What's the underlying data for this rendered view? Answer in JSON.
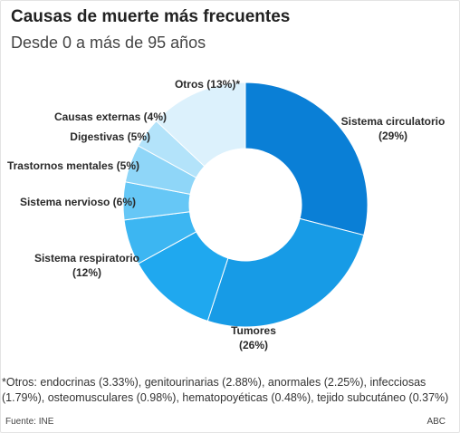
{
  "header": {
    "title": "Causas de muerte más frecuentes",
    "subtitle": "Desde 0 a más de 95 años"
  },
  "chart_data": {
    "type": "pie",
    "donut": true,
    "title": "Causas de muerte más frecuentes",
    "subtitle": "Desde 0 a más de 95 años",
    "categories": [
      "Sistema circulatorio",
      "Tumores",
      "Sistema respiratorio",
      "Sistema nervioso",
      "Trastornos mentales",
      "Digestivas",
      "Causas externas",
      "Otros"
    ],
    "values": [
      29,
      26,
      12,
      6,
      5,
      5,
      4,
      13
    ],
    "labels": [
      [
        "Sistema circulatorio",
        "(29%)"
      ],
      [
        "Tumores",
        "(26%)"
      ],
      [
        "Sistema respiratorio",
        "(12%)"
      ],
      [
        "Sistema nervioso (6%)"
      ],
      [
        "Trastornos mentales (5%)"
      ],
      [
        "Digestivas (5%)"
      ],
      [
        "Causas externas (4%)"
      ],
      [
        "Otros (13%)*"
      ]
    ],
    "colors": [
      "#0a7fd6",
      "#179be6",
      "#1fa8ef",
      "#3cb6f2",
      "#66c7f6",
      "#8fd6f8",
      "#b3e3fa",
      "#dcf1fc"
    ]
  },
  "footnote": "*Otros: endocrinas (3.33%), genitourinarias (2.88%), anormales (2.25%), infecciosas (1.79%), osteomusculares (0.98%), hematopoyéticas (0.48%), tejido subcutáneo (0.37%)",
  "source": "Fuente: INE",
  "brand": "ABC"
}
